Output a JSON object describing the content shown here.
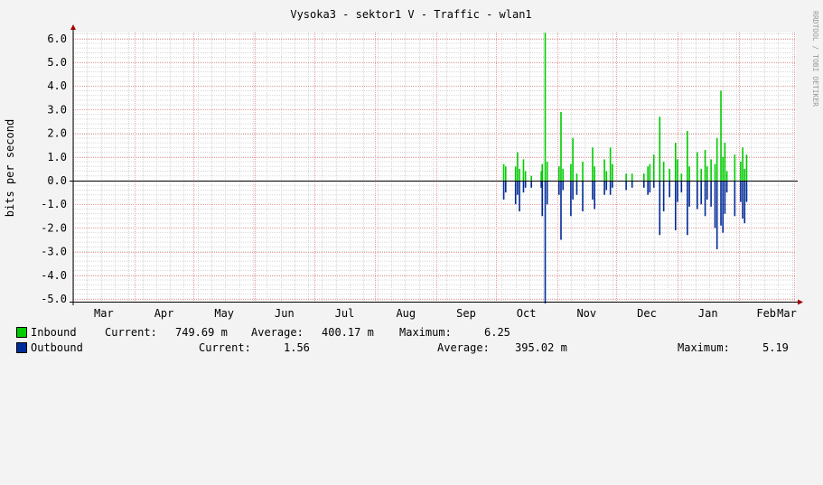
{
  "chart_data": {
    "type": "area",
    "title": "Vysoka3 - sektor1 V - Traffic - wlan1",
    "ylabel": "bits per second",
    "watermark": "RRDTOOL / TOBI OETIKER",
    "ylim": [
      -5.2,
      6.6
    ],
    "yticks": [
      "6.0",
      "5.0",
      "4.0",
      "3.0",
      "2.0",
      "1.0",
      "0.0",
      "-1.0",
      "-2.0",
      "-3.0",
      "-4.0",
      "-5.0"
    ],
    "ytick_values": [
      6,
      5,
      4,
      3,
      2,
      1,
      0,
      -1,
      -2,
      -3,
      -4,
      -5
    ],
    "x_months": [
      "Mar",
      "Apr",
      "May",
      "Jun",
      "Jul",
      "Aug",
      "Sep",
      "Oct",
      "Nov",
      "Dec",
      "Jan",
      "Feb",
      "Mar"
    ],
    "x_range_days": [
      0,
      366
    ],
    "grid": true,
    "colors": {
      "inbound": "#00cc00",
      "outbound": "#002a97",
      "grid_major": "#e8a0a0",
      "grid_minor": "#d8d8d8",
      "axis": "#000000",
      "arrow": "#a00000"
    },
    "series": [
      {
        "name": "Inbound",
        "points": [
          [
            218,
            0.7
          ],
          [
            219,
            0.6
          ],
          [
            224,
            0.6
          ],
          [
            225,
            1.2
          ],
          [
            226,
            0.5
          ],
          [
            228,
            0.9
          ],
          [
            229,
            0.4
          ],
          [
            232,
            0.2
          ],
          [
            237,
            0.4
          ],
          [
            237.5,
            0.7
          ],
          [
            239,
            6.25
          ],
          [
            240,
            0.8
          ],
          [
            246,
            0.6
          ],
          [
            247,
            2.9
          ],
          [
            248,
            0.5
          ],
          [
            252,
            0.7
          ],
          [
            253,
            1.8
          ],
          [
            255,
            0.3
          ],
          [
            258,
            0.8
          ],
          [
            263,
            1.4
          ],
          [
            264,
            0.6
          ],
          [
            269,
            0.9
          ],
          [
            270,
            0.4
          ],
          [
            272,
            1.4
          ],
          [
            273,
            0.7
          ],
          [
            280,
            0.3
          ],
          [
            283,
            0.3
          ],
          [
            289,
            0.3
          ],
          [
            291,
            0.6
          ],
          [
            292,
            0.7
          ],
          [
            294,
            1.1
          ],
          [
            297,
            2.7
          ],
          [
            299,
            0.8
          ],
          [
            302,
            0.5
          ],
          [
            305,
            1.6
          ],
          [
            306,
            0.9
          ],
          [
            308,
            0.3
          ],
          [
            311,
            2.1
          ],
          [
            312,
            0.6
          ],
          [
            316,
            1.2
          ],
          [
            318,
            0.5
          ],
          [
            320,
            1.3
          ],
          [
            321,
            0.6
          ],
          [
            323,
            0.9
          ],
          [
            325,
            0.7
          ],
          [
            326,
            1.8
          ],
          [
            328,
            3.8
          ],
          [
            329,
            1.0
          ],
          [
            330,
            1.6
          ],
          [
            331,
            0.4
          ],
          [
            335,
            1.1
          ],
          [
            338,
            0.8
          ],
          [
            339,
            1.4
          ],
          [
            340,
            0.5
          ],
          [
            341,
            1.1
          ]
        ]
      },
      {
        "name": "Outbound",
        "points": [
          [
            218,
            -0.8
          ],
          [
            219,
            -0.5
          ],
          [
            224,
            -1.0
          ],
          [
            225,
            -0.6
          ],
          [
            226,
            -1.3
          ],
          [
            228,
            -0.5
          ],
          [
            229,
            -0.3
          ],
          [
            232,
            -0.3
          ],
          [
            237,
            -0.3
          ],
          [
            237.5,
            -1.5
          ],
          [
            239,
            -5.19
          ],
          [
            240,
            -1.0
          ],
          [
            246,
            -0.6
          ],
          [
            247,
            -2.5
          ],
          [
            248,
            -0.4
          ],
          [
            252,
            -1.5
          ],
          [
            253,
            -0.8
          ],
          [
            255,
            -0.6
          ],
          [
            258,
            -1.3
          ],
          [
            263,
            -0.8
          ],
          [
            264,
            -1.2
          ],
          [
            269,
            -0.6
          ],
          [
            270,
            -0.4
          ],
          [
            272,
            -0.6
          ],
          [
            273,
            -0.3
          ],
          [
            280,
            -0.4
          ],
          [
            283,
            -0.3
          ],
          [
            289,
            -0.3
          ],
          [
            291,
            -0.6
          ],
          [
            292,
            -0.5
          ],
          [
            294,
            -0.3
          ],
          [
            297,
            -2.3
          ],
          [
            299,
            -1.3
          ],
          [
            302,
            -0.7
          ],
          [
            305,
            -2.1
          ],
          [
            306,
            -0.9
          ],
          [
            308,
            -0.5
          ],
          [
            311,
            -2.3
          ],
          [
            312,
            -1.1
          ],
          [
            316,
            -1.2
          ],
          [
            318,
            -1.0
          ],
          [
            320,
            -1.5
          ],
          [
            321,
            -0.8
          ],
          [
            323,
            -1.1
          ],
          [
            325,
            -2.0
          ],
          [
            326,
            -2.9
          ],
          [
            328,
            -1.9
          ],
          [
            329,
            -2.2
          ],
          [
            330,
            -1.4
          ],
          [
            331,
            -0.5
          ],
          [
            335,
            -1.5
          ],
          [
            338,
            -0.9
          ],
          [
            339,
            -1.6
          ],
          [
            340,
            -1.8
          ],
          [
            341,
            -0.9
          ]
        ]
      }
    ]
  },
  "legend": {
    "inbound": {
      "label": "Inbound",
      "current_label": "Current:",
      "current_value": "749.69 m",
      "average_label": "Average:",
      "average_value": "400.17 m",
      "maximum_label": "Maximum:",
      "maximum_value": "6.25"
    },
    "outbound": {
      "label": "Outbound",
      "current_label": "Current:",
      "current_value": "1.56",
      "average_label": "Average:",
      "average_value": "395.02 m",
      "maximum_label": "Maximum:",
      "maximum_value": "5.19"
    }
  }
}
